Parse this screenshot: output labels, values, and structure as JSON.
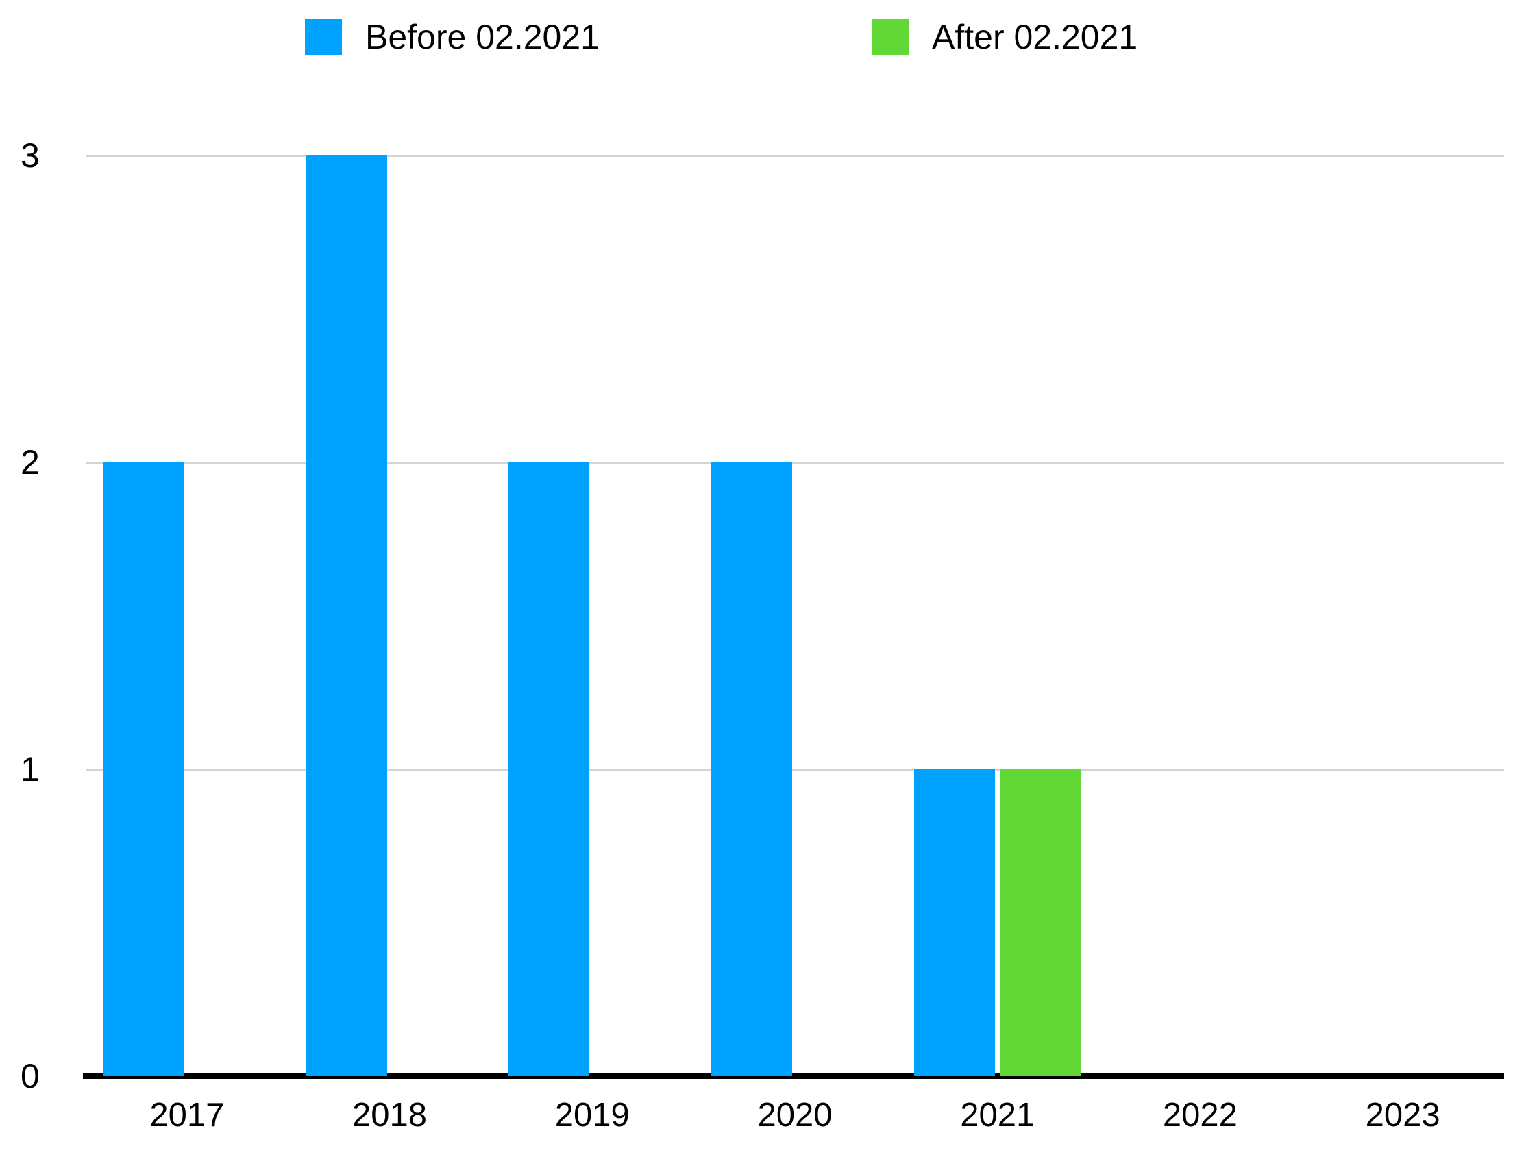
{
  "chart_data": {
    "type": "bar",
    "title": "",
    "xlabel": "",
    "ylabel": "",
    "categories": [
      "2017",
      "2018",
      "2019",
      "2020",
      "2021",
      "2022",
      "2023"
    ],
    "series": [
      {
        "name": "Before 02.2021",
        "color": "#00A2FF",
        "values": [
          2,
          3,
          2,
          2,
          1,
          0,
          0
        ]
      },
      {
        "name": "After 02.2021",
        "color": "#61D836",
        "values": [
          0,
          0,
          0,
          0,
          1,
          0,
          0
        ]
      }
    ],
    "ylim": [
      0,
      3
    ],
    "yticks": [
      0,
      1,
      2,
      3
    ],
    "grid": true,
    "legend_position": "top"
  },
  "colors": {
    "background": "#ffffff",
    "gridline": "#d4d4d4",
    "axis": "#000000",
    "text": "#000000"
  }
}
